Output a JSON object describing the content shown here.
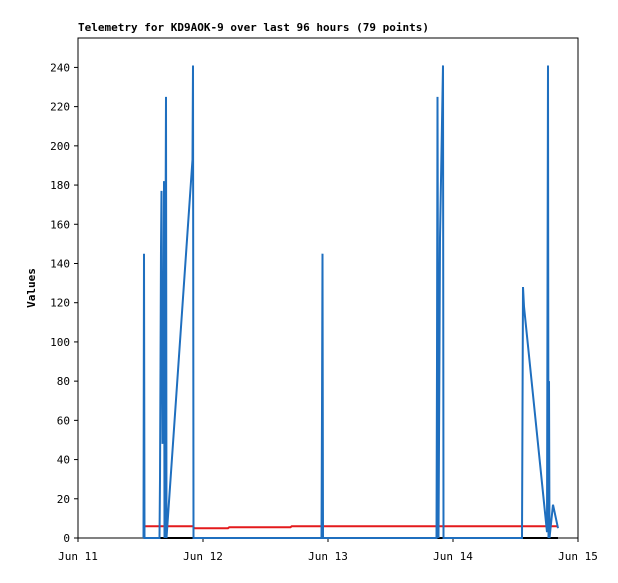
{
  "chart_data": {
    "type": "line",
    "title": "Telemetry for KD9AOK-9 over last 96 hours (79 points)",
    "y_label": "Values",
    "xlim": [
      11,
      15
    ],
    "xticks": [
      {
        "value": 11,
        "label": "Jun 11"
      },
      {
        "value": 12,
        "label": "Jun 12"
      },
      {
        "value": 13,
        "label": "Jun 13"
      },
      {
        "value": 14,
        "label": "Jun 14"
      },
      {
        "value": 15,
        "label": "Jun 15"
      }
    ],
    "ylim": [
      0,
      255
    ],
    "yticks": [
      0,
      20,
      40,
      60,
      80,
      100,
      120,
      140,
      160,
      180,
      200,
      220,
      240
    ],
    "series": [
      {
        "color": "#000000",
        "x": [
          11.528,
          14.84
        ],
        "values": [
          0,
          0
        ]
      },
      {
        "color": "#e41a1c",
        "x": [
          11.528,
          11.92,
          11.93,
          12.2,
          12.21,
          12.7,
          12.71,
          14.84
        ],
        "values": [
          6,
          6,
          5,
          5,
          5.5,
          5.5,
          6,
          6
        ]
      },
      {
        "color": "#1f6fbf",
        "x": [
          11.524,
          11.528,
          11.532,
          11.652,
          11.656,
          11.66,
          11.664,
          11.668,
          11.672,
          11.676,
          11.68,
          11.684,
          11.688,
          11.692,
          11.704,
          11.708,
          11.916,
          11.92,
          11.924,
          12.948,
          12.952,
          12.956,
          12.96,
          13.868,
          13.872,
          13.876,
          13.88,
          13.884,
          13.892,
          13.896,
          13.92,
          13.924,
          14.552,
          14.556,
          14.56,
          14.568,
          14.752,
          14.76,
          14.764,
          14.768,
          14.772,
          14.8,
          14.84
        ],
        "values": [
          0,
          145,
          0,
          0,
          30,
          88,
          148,
          177,
          113,
          48,
          93,
          48,
          182,
          0,
          225,
          0,
          193,
          241,
          0,
          0,
          65,
          145,
          0,
          0,
          89,
          225,
          113,
          0,
          97,
          153,
          241,
          0,
          0,
          65,
          128,
          118,
          3,
          241,
          0,
          80,
          0,
          17,
          5
        ]
      }
    ]
  }
}
